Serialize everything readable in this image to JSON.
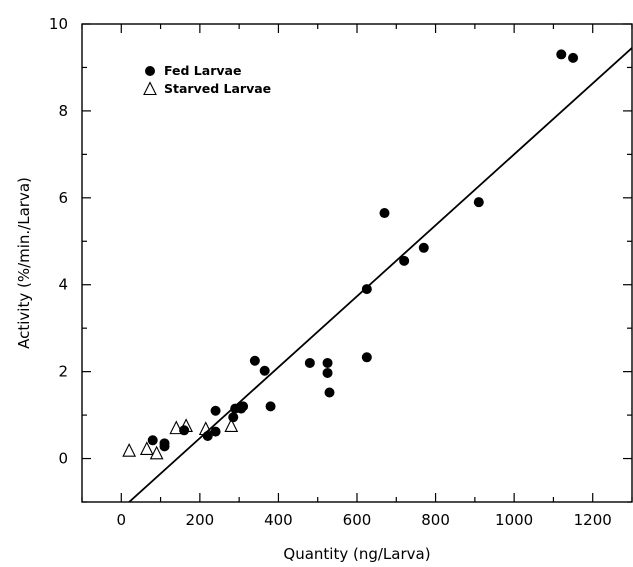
{
  "chart_data": {
    "type": "scatter",
    "xlabel": "Quantity (ng/Larva)",
    "ylabel": "Activity (%/min./Larva)",
    "xlim": [
      -100,
      1300
    ],
    "ylim": [
      -1,
      10
    ],
    "x_ticks": [
      0,
      200,
      400,
      600,
      800,
      1000,
      1200
    ],
    "y_ticks": [
      0,
      2,
      4,
      6,
      8,
      10
    ],
    "grid": false,
    "legend_position": "top-left",
    "series": [
      {
        "name": "Fed Larvae",
        "marker": "filled-circle",
        "points": [
          [
            80,
            0.42
          ],
          [
            110,
            0.28
          ],
          [
            110,
            0.35
          ],
          [
            160,
            0.65
          ],
          [
            220,
            0.52
          ],
          [
            240,
            1.1
          ],
          [
            240,
            0.62
          ],
          [
            285,
            0.95
          ],
          [
            290,
            1.15
          ],
          [
            305,
            1.15
          ],
          [
            310,
            1.2
          ],
          [
            340,
            2.25
          ],
          [
            365,
            2.02
          ],
          [
            380,
            1.2
          ],
          [
            480,
            2.2
          ],
          [
            525,
            2.2
          ],
          [
            525,
            1.97
          ],
          [
            530,
            1.52
          ],
          [
            625,
            2.33
          ],
          [
            625,
            3.9
          ],
          [
            670,
            5.65
          ],
          [
            720,
            4.55
          ],
          [
            770,
            4.85
          ],
          [
            910,
            5.9
          ],
          [
            1120,
            9.3
          ],
          [
            1150,
            9.22
          ]
        ]
      },
      {
        "name": "Starved Larvae",
        "marker": "open-triangle",
        "points": [
          [
            20,
            0.18
          ],
          [
            65,
            0.22
          ],
          [
            90,
            0.12
          ],
          [
            140,
            0.7
          ],
          [
            165,
            0.75
          ],
          [
            215,
            0.68
          ],
          [
            280,
            0.75
          ]
        ]
      }
    ],
    "fit_line": {
      "x": [
        20,
        1300
      ],
      "y": [
        -1.0,
        9.45
      ]
    }
  }
}
